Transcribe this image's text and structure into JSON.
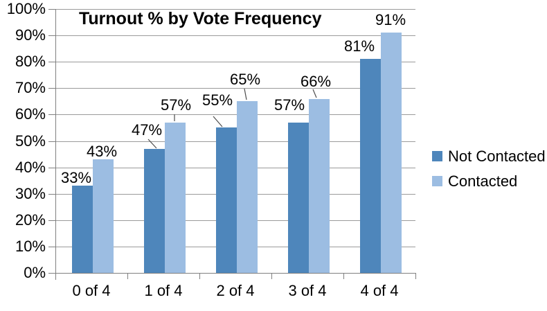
{
  "chart_data": {
    "type": "bar",
    "title": "Turnout % by Vote Frequency",
    "categories": [
      "0 of 4",
      "1 of 4",
      "2 of 4",
      "3 of 4",
      "4 of 4"
    ],
    "series": [
      {
        "name": "Not Contacted",
        "color": "#4e86bb",
        "values": [
          33,
          47,
          55,
          57,
          81
        ]
      },
      {
        "name": "Contacted",
        "color": "#9cbde2",
        "values": [
          43,
          57,
          65,
          66,
          91
        ]
      }
    ],
    "data_labels": true,
    "value_suffix": "%",
    "xlabel": "",
    "ylabel": "",
    "ylim": [
      0,
      100
    ],
    "ytick_step": 10,
    "yticks": [
      "0%",
      "10%",
      "20%",
      "30%",
      "40%",
      "50%",
      "60%",
      "70%",
      "80%",
      "90%",
      "100%"
    ],
    "grid": true,
    "legend_position": "right",
    "colors": {
      "background": "#ffffff",
      "gridline": "#9a9a9a",
      "axis": "#7f7f7f",
      "leader_line": "#4d4d4d",
      "text": "#000000"
    }
  }
}
